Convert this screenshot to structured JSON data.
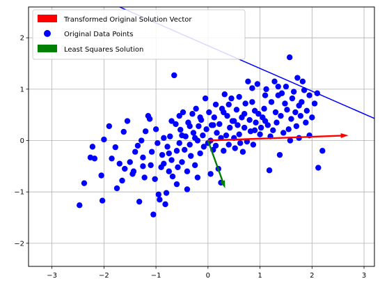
{
  "chart_data": {
    "type": "scatter",
    "title": "",
    "xlabel": "",
    "ylabel": "",
    "xlim": [
      -3.45,
      3.2
    ],
    "ylim": [
      -2.45,
      2.6
    ],
    "grid": true,
    "xticks": [
      -3,
      -2,
      -1,
      0,
      1,
      2,
      3
    ],
    "yticks": [
      -2,
      -1,
      0,
      1,
      2
    ],
    "x_tick_labels": [
      "−3",
      "−2",
      "−1",
      "0",
      "1",
      "2",
      "3"
    ],
    "y_tick_labels": [
      "−2",
      "−1",
      "0",
      "1",
      "2"
    ],
    "legend_position": "upper left",
    "legend": [
      {
        "label": "Transformed Original Solution Vector",
        "marker": "patch",
        "color": "#ff0000"
      },
      {
        "label": "Original Data Points",
        "marker": "circle",
        "color": "#0000ff"
      },
      {
        "label": "Least Squares Solution",
        "marker": "patch",
        "color": "#008000"
      }
    ],
    "series": [
      {
        "name": "Original Data Points",
        "kind": "scatter",
        "color": "#0000ff",
        "points": [
          [
            -2.47,
            -1.26
          ],
          [
            -2.38,
            -0.83
          ],
          [
            -2.26,
            -0.33
          ],
          [
            -2.22,
            -0.12
          ],
          [
            -2.18,
            -0.35
          ],
          [
            -2.05,
            -0.68
          ],
          [
            -2.03,
            -1.17
          ],
          [
            -2.0,
            0.02
          ],
          [
            -1.9,
            0.28
          ],
          [
            -1.78,
            -0.13
          ],
          [
            -1.75,
            -0.93
          ],
          [
            -1.7,
            -0.45
          ],
          [
            -1.62,
            0.17
          ],
          [
            -1.6,
            -0.55
          ],
          [
            -1.55,
            0.38
          ],
          [
            -1.5,
            -0.42
          ],
          [
            -1.43,
            -0.6
          ],
          [
            -1.4,
            -0.22
          ],
          [
            -1.35,
            -0.1
          ],
          [
            -1.32,
            -1.19
          ],
          [
            -1.28,
            0.0
          ],
          [
            -1.25,
            -0.33
          ],
          [
            -1.22,
            -0.72
          ],
          [
            -1.2,
            0.18
          ],
          [
            -1.15,
            0.48
          ],
          [
            -1.12,
            0.42
          ],
          [
            -1.1,
            -0.48
          ],
          [
            -1.08,
            -0.22
          ],
          [
            -1.05,
            -1.44
          ],
          [
            -1.02,
            -0.75
          ],
          [
            -1.0,
            0.22
          ],
          [
            -0.97,
            -0.05
          ],
          [
            -0.95,
            -1.05
          ],
          [
            -0.93,
            -1.15
          ],
          [
            -0.9,
            -0.52
          ],
          [
            -0.88,
            -0.28
          ],
          [
            -0.85,
            -0.45
          ],
          [
            -0.82,
            -1.24
          ],
          [
            -0.8,
            -1.02
          ],
          [
            -0.78,
            -0.12
          ],
          [
            -0.75,
            -0.6
          ],
          [
            -0.73,
            0.08
          ],
          [
            -0.7,
            -0.38
          ],
          [
            -0.68,
            -0.7
          ],
          [
            -0.65,
            1.27
          ],
          [
            -0.62,
            0.32
          ],
          [
            -0.6,
            -0.2
          ],
          [
            -0.58,
            -0.52
          ],
          [
            -0.55,
            -0.05
          ],
          [
            -0.53,
            0.21
          ],
          [
            -0.5,
            -0.42
          ],
          [
            -0.48,
            0.55
          ],
          [
            -0.45,
            -0.18
          ],
          [
            -0.43,
            0.08
          ],
          [
            -0.4,
            -0.6
          ],
          [
            -0.38,
            0.35
          ],
          [
            -0.35,
            -0.08
          ],
          [
            -0.33,
            -0.3
          ],
          [
            -0.3,
            0.52
          ],
          [
            -0.28,
            0.15
          ],
          [
            -0.25,
            -0.48
          ],
          [
            -0.23,
            0.62
          ],
          [
            -0.2,
            0.0
          ],
          [
            -0.18,
            0.28
          ],
          [
            -0.15,
            -0.25
          ],
          [
            -0.13,
            0.4
          ],
          [
            -0.1,
            0.1
          ],
          [
            -0.08,
            -0.12
          ],
          [
            -0.05,
            0.82
          ],
          [
            -0.03,
            0.22
          ],
          [
            0.0,
            -0.05
          ],
          [
            0.02,
            0.55
          ],
          [
            0.05,
            0.0
          ],
          [
            0.07,
            0.3
          ],
          [
            0.1,
            -0.18
          ],
          [
            0.12,
            0.45
          ],
          [
            0.15,
            -0.1
          ],
          [
            0.17,
            0.15
          ],
          [
            0.2,
            -0.55
          ],
          [
            0.22,
            0.32
          ],
          [
            0.25,
            0.05
          ],
          [
            0.27,
            0.62
          ],
          [
            0.3,
            -0.2
          ],
          [
            0.32,
            0.9
          ],
          [
            0.35,
            0.1
          ],
          [
            0.37,
            0.48
          ],
          [
            0.4,
            -0.08
          ],
          [
            0.42,
            0.25
          ],
          [
            0.45,
            0.82
          ],
          [
            0.47,
            0.38
          ],
          [
            0.5,
            0.05
          ],
          [
            0.52,
            -0.15
          ],
          [
            0.55,
            0.6
          ],
          [
            0.57,
            0.3
          ],
          [
            0.6,
            0.12
          ],
          [
            0.62,
            -0.05
          ],
          [
            0.65,
            0.45
          ],
          [
            0.67,
            -0.22
          ],
          [
            0.7,
            0.25
          ],
          [
            0.72,
            0.72
          ],
          [
            0.75,
            -0.02
          ],
          [
            0.77,
            1.15
          ],
          [
            0.8,
            0.4
          ],
          [
            0.82,
            0.18
          ],
          [
            0.85,
            0.75
          ],
          [
            0.87,
            -0.08
          ],
          [
            0.9,
            0.58
          ],
          [
            0.92,
            0.35
          ],
          [
            0.95,
            1.1
          ],
          [
            0.97,
            0.52
          ],
          [
            1.0,
            0.12
          ],
          [
            1.02,
            0.25
          ],
          [
            1.05,
            0.45
          ],
          [
            1.08,
            0.62
          ],
          [
            1.1,
            0.88
          ],
          [
            1.12,
            1.0
          ],
          [
            1.15,
            0.3
          ],
          [
            1.18,
            -0.58
          ],
          [
            1.2,
            0.08
          ],
          [
            1.22,
            0.75
          ],
          [
            1.25,
            0.2
          ],
          [
            1.28,
            1.15
          ],
          [
            1.3,
            0.55
          ],
          [
            1.32,
            0.35
          ],
          [
            1.35,
            0.88
          ],
          [
            1.38,
            -0.28
          ],
          [
            1.4,
            0.48
          ],
          [
            1.42,
            0.92
          ],
          [
            1.45,
            0.15
          ],
          [
            1.48,
            0.72
          ],
          [
            1.5,
            1.05
          ],
          [
            1.52,
            0.6
          ],
          [
            1.55,
            0.22
          ],
          [
            1.57,
            1.62
          ],
          [
            1.6,
            0.42
          ],
          [
            1.62,
            0.82
          ],
          [
            1.65,
            0.95
          ],
          [
            1.68,
            0.55
          ],
          [
            1.7,
            0.28
          ],
          [
            1.72,
            1.22
          ],
          [
            1.75,
            0.68
          ],
          [
            1.78,
            0.48
          ],
          [
            1.8,
            0.75
          ],
          [
            1.82,
            1.15
          ],
          [
            1.85,
            0.98
          ],
          [
            1.88,
            0.35
          ],
          [
            1.9,
            0.58
          ],
          [
            1.95,
            0.88
          ],
          [
            2.0,
            0.45
          ],
          [
            2.05,
            0.72
          ],
          [
            2.1,
            0.92
          ],
          [
            2.12,
            -0.53
          ],
          [
            2.2,
            -0.2
          ],
          [
            -0.85,
            0.05
          ],
          [
            -0.7,
            0.38
          ],
          [
            -0.55,
            0.48
          ],
          [
            -0.35,
            0.28
          ],
          [
            -0.15,
            0.45
          ],
          [
            0.1,
            0.3
          ],
          [
            0.3,
            0.55
          ],
          [
            0.5,
            0.38
          ],
          [
            0.7,
            0.52
          ],
          [
            0.9,
            0.2
          ],
          [
            1.1,
            0.38
          ],
          [
            -1.85,
            -0.35
          ],
          [
            -1.65,
            -0.78
          ],
          [
            -1.45,
            -0.65
          ],
          [
            -1.25,
            -0.5
          ],
          [
            -0.6,
            -0.85
          ],
          [
            -0.4,
            -0.95
          ],
          [
            -0.2,
            -0.72
          ],
          [
            0.05,
            -0.65
          ],
          [
            0.25,
            -0.82
          ],
          [
            -0.75,
            -0.25
          ],
          [
            -0.5,
            0.1
          ],
          [
            -0.25,
            0.05
          ],
          [
            0.15,
            0.7
          ],
          [
            0.4,
            0.7
          ],
          [
            0.6,
            0.85
          ],
          [
            0.85,
            1.02
          ],
          [
            1.35,
            1.05
          ],
          [
            1.58,
            0.0
          ],
          [
            1.75,
            0.05
          ],
          [
            1.95,
            0.1
          ]
        ]
      }
    ],
    "vectors": [
      {
        "name": "Transformed Original Solution Vector",
        "color": "#ff0000",
        "from": [
          0,
          0
        ],
        "to": [
          2.7,
          0.1
        ]
      },
      {
        "name": "Least Squares Solution",
        "color": "#008000",
        "from": [
          0,
          0
        ],
        "to": [
          0.33,
          -0.93
        ]
      }
    ],
    "lines": [
      {
        "name": "",
        "color": "#0000ff",
        "points": [
          [
            -1.7,
            2.6
          ],
          [
            3.2,
            0.43
          ]
        ]
      }
    ]
  }
}
